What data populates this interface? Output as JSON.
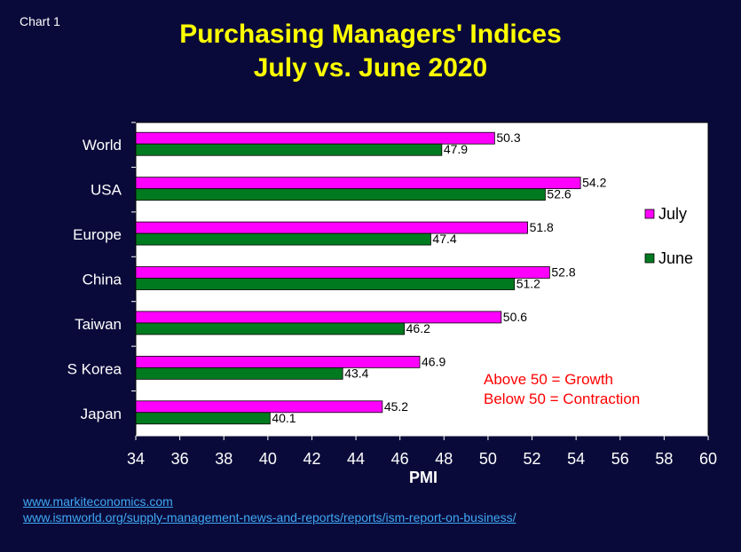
{
  "chart_label": "Chart 1",
  "title_line1": "Purchasing Managers' Indices",
  "title_line2": "July vs. June 2020",
  "links": [
    "www.markiteconomics.com",
    "www.ismworld.org/supply-management-news-and-reports/reports/ism-report-on-business/"
  ],
  "chart_data": {
    "type": "bar",
    "orientation": "horizontal",
    "categories": [
      "World",
      "USA",
      "Europe",
      "China",
      "Taiwan",
      "S Korea",
      "Japan"
    ],
    "series": [
      {
        "name": "July",
        "color": "#ff00ff",
        "values": [
          50.3,
          54.2,
          51.8,
          52.8,
          50.6,
          46.9,
          45.2
        ]
      },
      {
        "name": "June",
        "color": "#007a1f",
        "values": [
          47.9,
          52.6,
          47.4,
          51.2,
          46.2,
          43.4,
          40.1
        ]
      }
    ],
    "xlabel": "PMI",
    "xlim": [
      34,
      60
    ],
    "xticks": [
      34,
      36,
      38,
      40,
      42,
      44,
      46,
      48,
      50,
      52,
      54,
      56,
      58,
      60
    ],
    "legend_position": "right",
    "annotations": [
      "Above 50 = Growth",
      "Below 50 = Contraction"
    ],
    "annotation_color": "#ff0000",
    "grid": false
  }
}
